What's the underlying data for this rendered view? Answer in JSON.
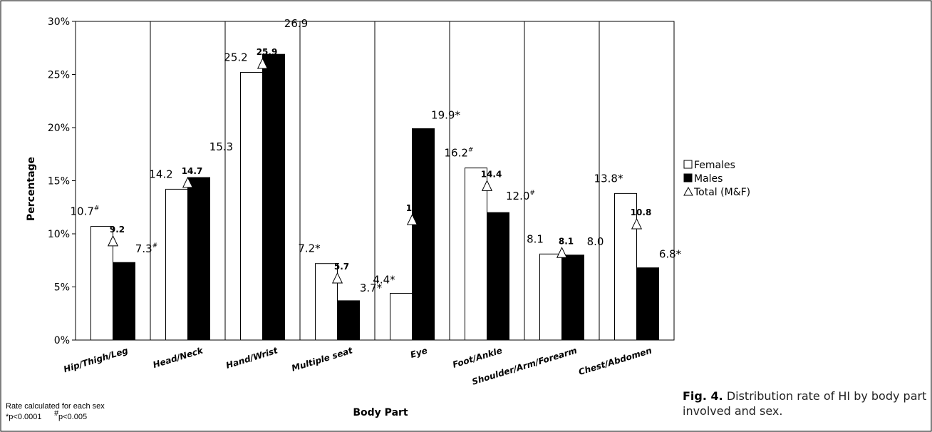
{
  "chart_data": {
    "type": "bar",
    "xlabel": "Body Part",
    "ylabel": "Percentage",
    "ylim": [
      0,
      30
    ],
    "yticks": [
      "0%",
      "5%",
      "10%",
      "15%",
      "20%",
      "25%",
      "30%"
    ],
    "categories": [
      "Hip/Thigh/Leg",
      "Head/Neck",
      "Hand/Wrist",
      "Multiple seat",
      "Eye",
      "Foot/Ankle",
      "Shoulder/Arm/Forearm",
      "Chest/Abdomen"
    ],
    "series": [
      {
        "name": "Females",
        "color": "#ffffff",
        "values": [
          10.7,
          14.2,
          25.2,
          7.2,
          4.4,
          16.2,
          8.1,
          13.8
        ],
        "labels": [
          "10.7",
          "14.2",
          "25.2",
          "7.2*",
          "4.4*",
          "16.2",
          "8.1",
          "13.8*"
        ],
        "sup": [
          "#",
          "",
          "",
          "",
          "",
          "#",
          "",
          ""
        ]
      },
      {
        "name": "Males",
        "color": "#000000",
        "values": [
          7.3,
          15.3,
          26.9,
          3.7,
          19.9,
          12.0,
          8.0,
          6.8
        ],
        "labels": [
          "7.3",
          "15.3",
          "26.9",
          "3.7*",
          "19.9*",
          "12.0",
          "8.0",
          "6.8*"
        ],
        "sup": [
          "#",
          "",
          "",
          "",
          "",
          "#",
          "",
          ""
        ]
      },
      {
        "name": "Total (M&F)",
        "marker": "triangle",
        "values": [
          9.2,
          14.7,
          25.9,
          5.7,
          11.2,
          14.4,
          8.1,
          10.8
        ],
        "labels": [
          "9.2",
          "14.7",
          "25.9",
          "5.7",
          "11.2",
          "14.4",
          "8.1",
          "10.8"
        ]
      }
    ],
    "legend": {
      "position": "right",
      "items": [
        "Females",
        "Males",
        "Total (M&F)"
      ]
    },
    "grid": false
  },
  "footnote": {
    "line1": "Rate calculated for each sex",
    "p1": "*p<0.0001",
    "p2_sup": "#",
    "p2": "p<0.005"
  },
  "caption": {
    "fig": "Fig. 4.",
    "text": "Distribution rate of HI by body part involved and sex."
  }
}
